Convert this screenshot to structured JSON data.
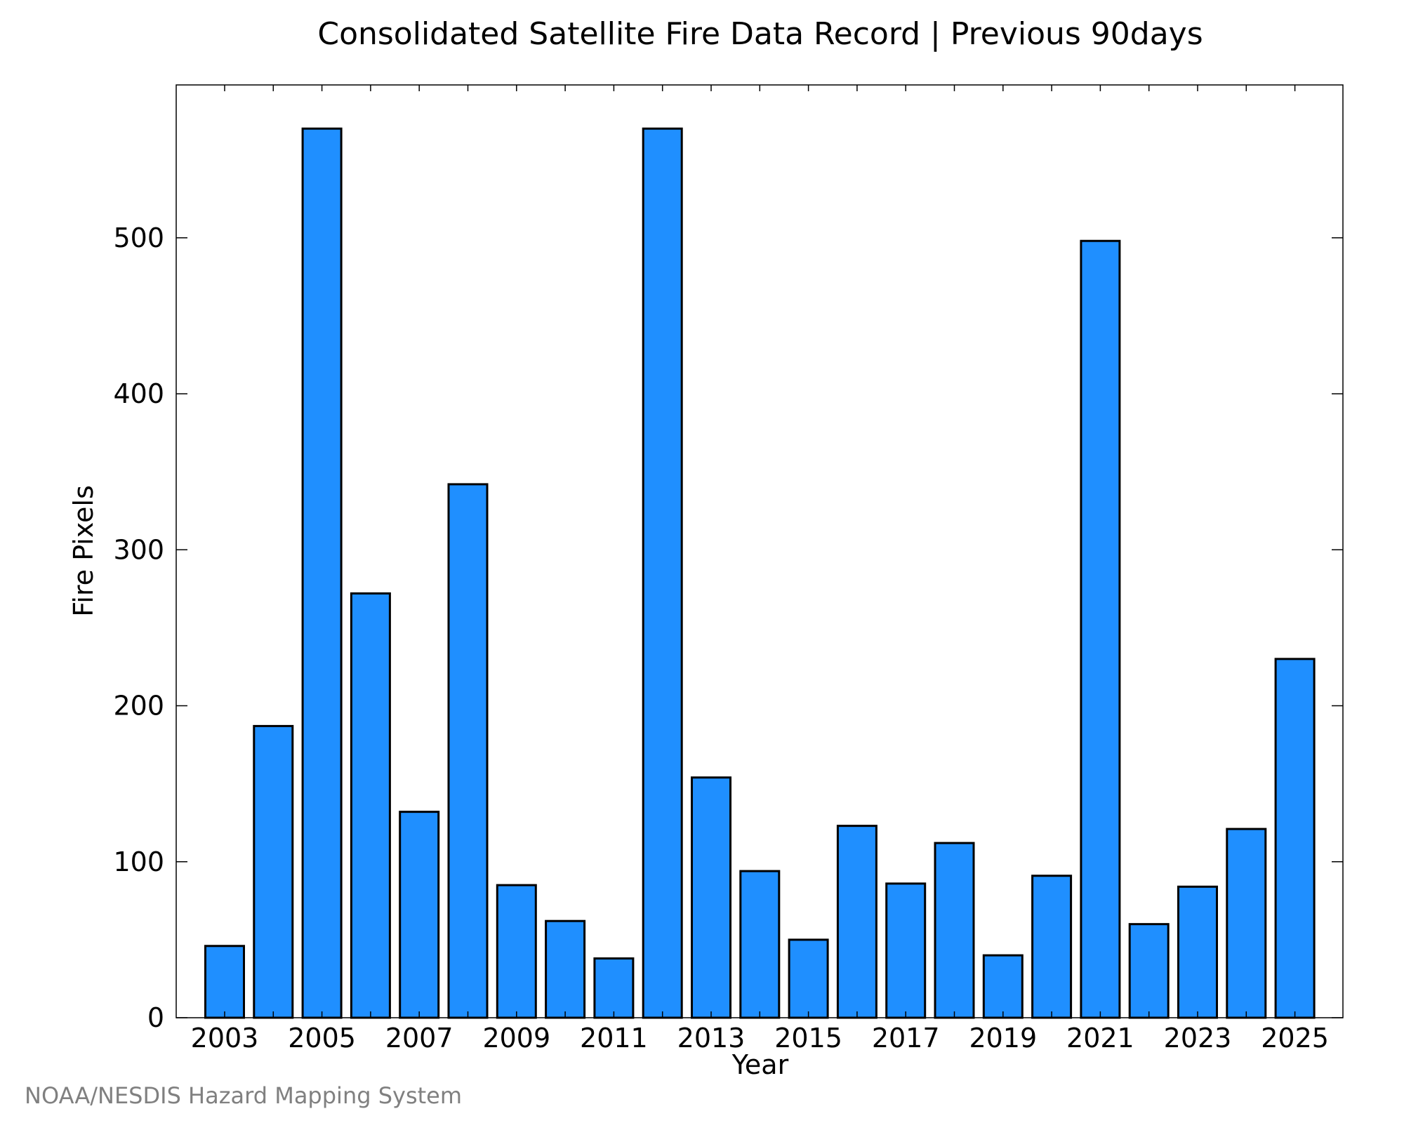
{
  "chart_data": {
    "type": "bar",
    "title": "Consolidated Satellite Fire Data Record | Previous 90days",
    "xlabel": "Year",
    "ylabel": "Fire Pixels",
    "categories": [
      "2003",
      "2004",
      "2005",
      "2006",
      "2007",
      "2008",
      "2009",
      "2010",
      "2011",
      "2012",
      "2013",
      "2014",
      "2015",
      "2016",
      "2017",
      "2018",
      "2019",
      "2020",
      "2021",
      "2022",
      "2023",
      "2024",
      "2025"
    ],
    "values": [
      46,
      187,
      570,
      272,
      132,
      342,
      85,
      62,
      38,
      570,
      154,
      94,
      50,
      123,
      86,
      112,
      40,
      91,
      498,
      60,
      84,
      121,
      230
    ],
    "x_tick_labels": [
      "2003",
      "2005",
      "2007",
      "2009",
      "2011",
      "2013",
      "2015",
      "2017",
      "2019",
      "2021",
      "2023",
      "2025"
    ],
    "y_ticks": [
      0,
      100,
      200,
      300,
      400,
      500
    ],
    "ylim": [
      0,
      598
    ],
    "bar_color": "#1f8fff",
    "grid": false,
    "credit": "NOAA/NESDIS Hazard Mapping System"
  }
}
